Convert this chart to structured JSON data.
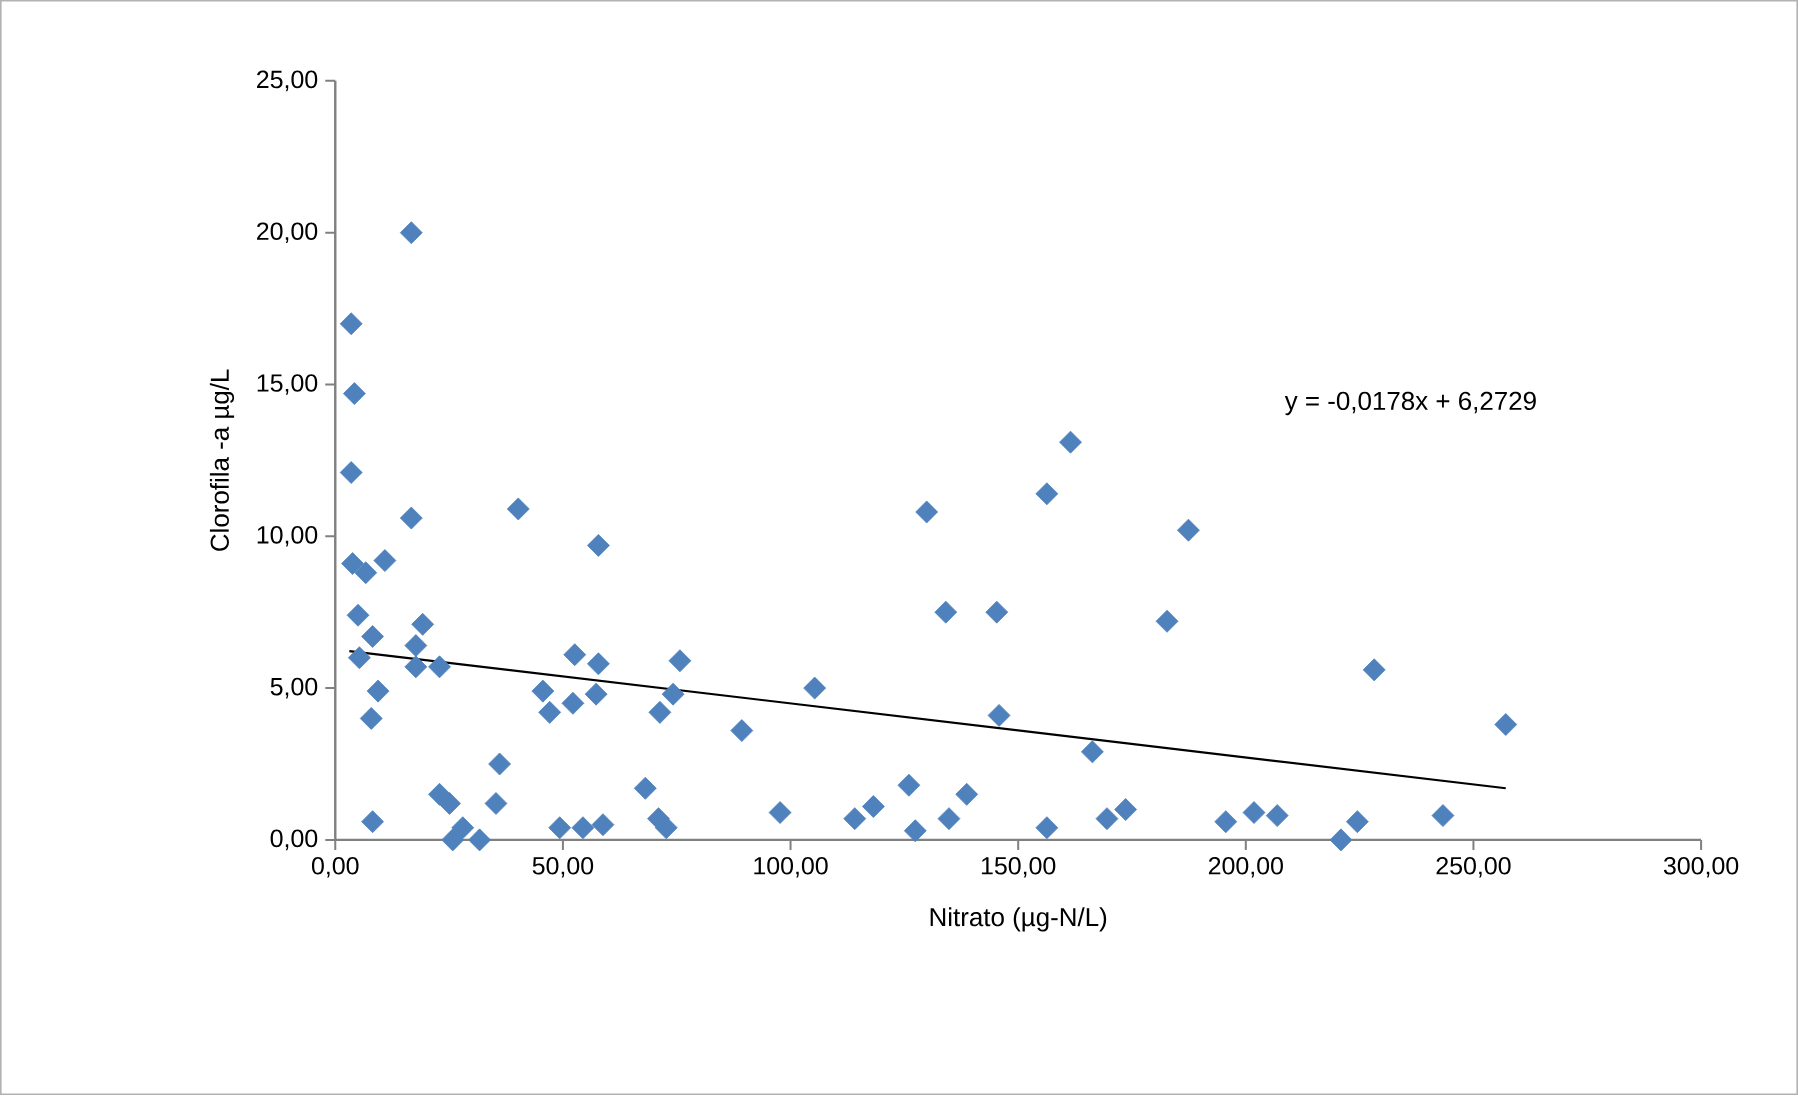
{
  "chart_data": {
    "type": "scatter",
    "xlabel": "Nitrato (µg-N/L)",
    "ylabel": "Clorofila -a µg/L",
    "xlim": [
      0,
      300
    ],
    "ylim": [
      0,
      25
    ],
    "xticks": [
      {
        "value": 0,
        "label": "0,00"
      },
      {
        "value": 50,
        "label": "50,00"
      },
      {
        "value": 100,
        "label": "100,00"
      },
      {
        "value": 150,
        "label": "150,00"
      },
      {
        "value": 200,
        "label": "200,00"
      },
      {
        "value": 250,
        "label": "250,00"
      },
      {
        "value": 300,
        "label": "300,00"
      }
    ],
    "yticks": [
      {
        "value": 0,
        "label": "0,00"
      },
      {
        "value": 5,
        "label": "5,00"
      },
      {
        "value": 10,
        "label": "10,00"
      },
      {
        "value": 15,
        "label": "15,00"
      },
      {
        "value": 20,
        "label": "20,00"
      },
      {
        "value": 25,
        "label": "25,00"
      }
    ],
    "grid": false,
    "marker": "diamond",
    "annotations": [
      "y = -0,0178x + 6,2729"
    ],
    "series": [
      {
        "color": "#4f81bd",
        "x": [
          16.7,
          3.5,
          4.2,
          3.5,
          40.2,
          16.7,
          57.8,
          3.8,
          6.7,
          10.9,
          5.0,
          19.2,
          8.2,
          5.3,
          17.7,
          17.7,
          22.9,
          52.6,
          57.8,
          75.7,
          9.4,
          7.9,
          45.6,
          47.1,
          52.2,
          57.3,
          71.3,
          74.2,
          105.3,
          89.3,
          36.1,
          22.9,
          25.1,
          35.3,
          68.1,
          28.0,
          25.8,
          31.7,
          8.2,
          49.3,
          54.4,
          58.8,
          71.0,
          72.7,
          97.7,
          129.9,
          156.3,
          161.5,
          187.4,
          134.1,
          145.3,
          182.7,
          228.2,
          145.8,
          166.3,
          257.1,
          126.0,
          138.7,
          114.1,
          118.2,
          127.4,
          134.8,
          156.3,
          169.5,
          173.6,
          195.6,
          201.8,
          206.9,
          220.9,
          224.5,
          243.3
        ],
        "values": [
          20.0,
          17.0,
          14.7,
          12.1,
          10.9,
          10.6,
          9.7,
          9.1,
          8.8,
          9.2,
          7.4,
          7.1,
          6.7,
          6.0,
          6.4,
          5.7,
          5.7,
          6.1,
          5.8,
          5.9,
          4.9,
          4.0,
          4.9,
          4.2,
          4.5,
          4.8,
          4.2,
          4.8,
          5.0,
          3.6,
          2.5,
          1.5,
          1.2,
          1.2,
          1.7,
          0.4,
          0.0,
          0.0,
          0.6,
          0.4,
          0.4,
          0.5,
          0.7,
          0.4,
          0.9,
          10.8,
          11.4,
          13.1,
          10.2,
          7.5,
          7.5,
          7.2,
          5.6,
          4.1,
          2.9,
          3.8,
          1.8,
          1.5,
          0.7,
          1.1,
          0.3,
          0.7,
          0.4,
          0.7,
          1.0,
          0.6,
          0.9,
          0.8,
          0.0,
          0.6,
          0.8
        ]
      },
      {
        "type": "line",
        "color": "#000000",
        "marker": "none",
        "x": [
          3.1,
          257.1
        ],
        "values": [
          6.22,
          1.7
        ]
      }
    ]
  }
}
